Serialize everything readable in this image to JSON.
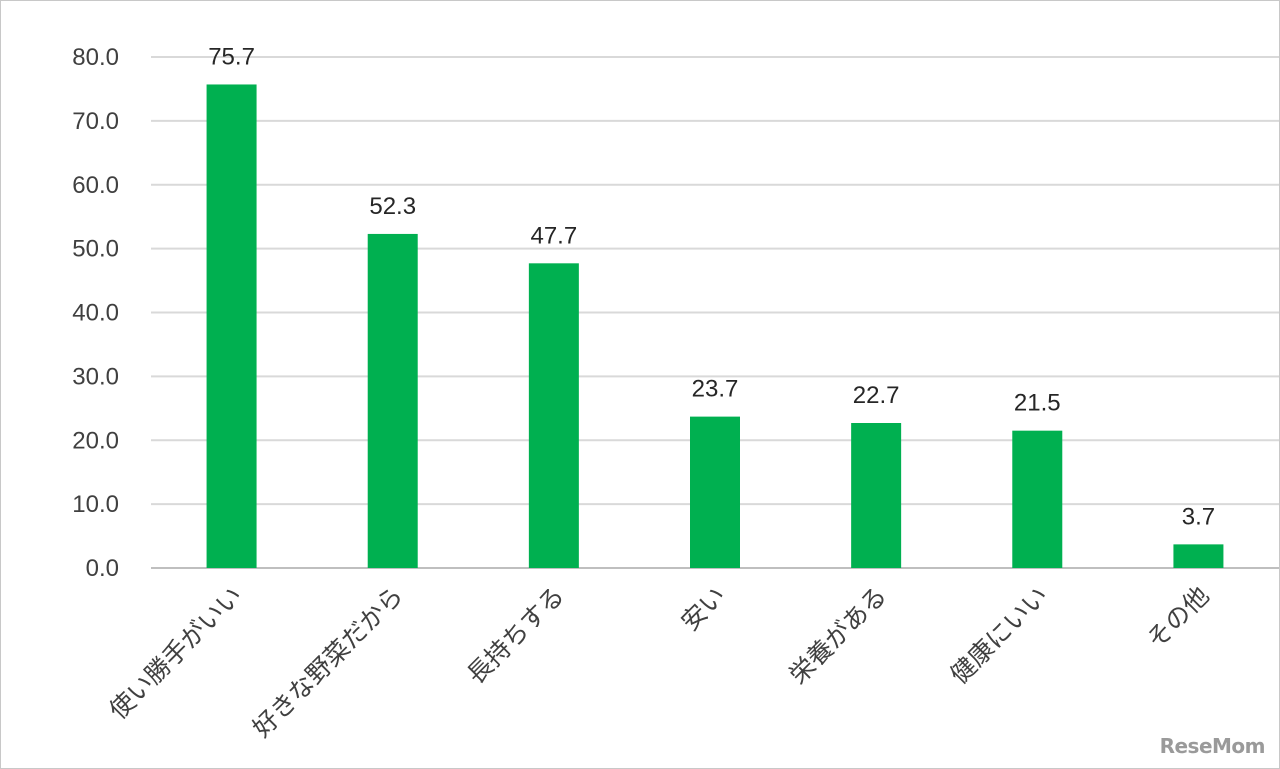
{
  "chart_data": {
    "type": "bar",
    "categories": [
      "使い勝手がいい",
      "好きな野菜だから",
      "長持ちする",
      "安い",
      "栄養がある",
      "健康にいい",
      "その他"
    ],
    "values": [
      75.7,
      52.3,
      47.7,
      23.7,
      22.7,
      21.5,
      3.7
    ],
    "data_labels": [
      "75.7",
      "52.3",
      "47.7",
      "23.7",
      "22.7",
      "21.5",
      "3.7"
    ],
    "y_ticks": [
      0,
      10,
      20,
      30,
      40,
      50,
      60,
      70,
      80
    ],
    "y_tick_labels": [
      "0.0",
      "10.0",
      "20.0",
      "30.0",
      "40.0",
      "50.0",
      "60.0",
      "70.0",
      "80.0"
    ],
    "ylim": [
      0,
      80
    ],
    "grid": true,
    "bar_color": "#00b050",
    "title": "",
    "xlabel": "",
    "ylabel": ""
  },
  "watermark": "ReseMom"
}
